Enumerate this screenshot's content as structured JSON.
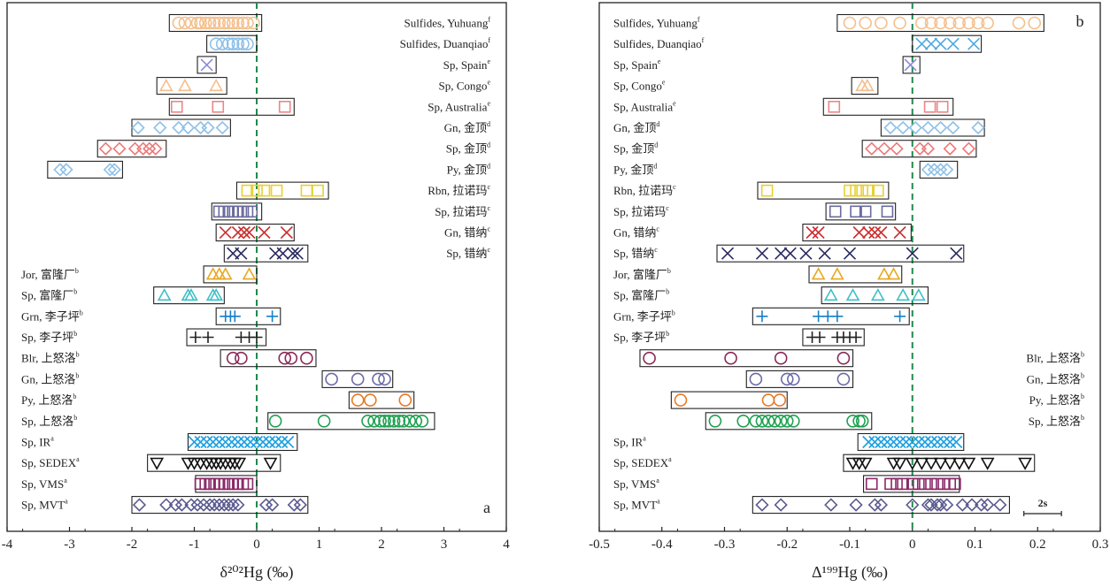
{
  "chart_data": [
    {
      "panel_letter": "a",
      "type": "scatter",
      "xlabel": "δ²⁰²Hg (‰)",
      "xlim": [
        -4,
        4
      ],
      "xticks": [
        "-4",
        "-3",
        "-2",
        "-1",
        "0",
        "1",
        "2",
        "3",
        "4"
      ],
      "reference_line_x": 0,
      "rows": [
        {
          "label": "Sulfides, Yuhuang",
          "sup": "f",
          "side": "right",
          "marker": "circle",
          "color": "#f4bf8c",
          "range": [
            -1.4,
            0.08
          ],
          "values": [
            -1.25,
            -1.15,
            -1.05,
            -0.95,
            -0.9,
            -0.82,
            -0.75,
            -0.68,
            -0.6,
            -0.52,
            -0.45,
            -0.38,
            -0.3,
            -0.22,
            -0.15,
            -0.05
          ]
        },
        {
          "label": "Sulfides, Duanqiao",
          "sup": "f",
          "side": "right",
          "marker": "circle",
          "color": "#8ec0e8",
          "range": [
            -0.8,
            0.0
          ],
          "values": [
            -0.65,
            -0.55,
            -0.45,
            -0.38,
            -0.3,
            -0.22,
            -0.15
          ]
        },
        {
          "label": "Sp, Spain",
          "sup": "e",
          "side": "right",
          "marker": "x",
          "color": "#8a8ad8",
          "range": [
            -0.95,
            -0.65
          ],
          "values": [
            -0.8
          ]
        },
        {
          "label": "Sp, Congo",
          "sup": "e",
          "side": "right",
          "marker": "triangle",
          "color": "#f4bf8c",
          "range": [
            -1.6,
            -0.48
          ],
          "values": [
            -1.45,
            -1.15,
            -0.65
          ]
        },
        {
          "label": "Sp, Australia",
          "sup": "e",
          "side": "right",
          "marker": "square",
          "color": "#e88888",
          "range": [
            -1.4,
            0.6
          ],
          "values": [
            -1.28,
            -0.62,
            0.45
          ]
        },
        {
          "label": "Gn, 金顶",
          "sup": "d",
          "side": "right",
          "marker": "diamond",
          "color": "#8ec0e8",
          "range": [
            -2.0,
            -0.42
          ],
          "values": [
            -1.9,
            -1.55,
            -1.25,
            -1.1,
            -0.9,
            -0.78,
            -0.55
          ]
        },
        {
          "label": "Sp, 金顶",
          "sup": "d",
          "side": "right",
          "marker": "diamond",
          "color": "#ec7878",
          "range": [
            -2.55,
            -1.45
          ],
          "values": [
            -2.42,
            -2.2,
            -1.95,
            -1.82,
            -1.72,
            -1.62
          ]
        },
        {
          "label": "Py, 金顶",
          "sup": "d",
          "side": "right",
          "marker": "diamond",
          "color": "#8ec0e8",
          "range": [
            -3.35,
            -2.15
          ],
          "values": [
            -3.15,
            -3.05,
            -2.35,
            -2.28
          ]
        },
        {
          "label": "Rbn, 拉诺玛",
          "sup": "c",
          "side": "right",
          "marker": "square",
          "color": "#e8d030",
          "range": [
            -0.32,
            1.15
          ],
          "values": [
            -0.15,
            0.0,
            0.12,
            0.32,
            0.8,
            0.98
          ]
        },
        {
          "label": "Sp, 拉诺玛",
          "sup": "c",
          "side": "right",
          "marker": "square",
          "color": "#6a6a9e",
          "range": [
            -0.72,
            0.08
          ],
          "values": [
            -0.6,
            -0.52,
            -0.45,
            -0.38,
            -0.3,
            -0.22,
            -0.15,
            -0.08
          ]
        },
        {
          "label": "Gn, 错纳",
          "sup": "c",
          "side": "right",
          "marker": "x",
          "color": "#cc3030",
          "range": [
            -0.65,
            0.6
          ],
          "values": [
            -0.5,
            -0.3,
            -0.2,
            -0.12,
            0.12,
            0.48
          ]
        },
        {
          "label": "Sp, 错纳",
          "sup": "c",
          "side": "right",
          "marker": "x",
          "color": "#2a2a5e",
          "range": [
            -0.52,
            0.82
          ],
          "values": [
            -0.38,
            -0.25,
            0.3,
            0.42,
            0.58,
            0.65
          ]
        },
        {
          "label": "Jor, 富隆厂",
          "sup": "b",
          "side": "left",
          "marker": "triangle",
          "color": "#e8a820",
          "range": [
            -0.85,
            0.0
          ],
          "values": [
            -0.7,
            -0.6,
            -0.5,
            -0.12
          ]
        },
        {
          "label": "Sp, 富隆厂",
          "sup": "b",
          "side": "left",
          "marker": "triangle",
          "color": "#40c0c8",
          "range": [
            -1.65,
            -0.52
          ],
          "values": [
            -1.48,
            -1.1,
            -1.05,
            -0.7,
            -0.65
          ]
        },
        {
          "label": "Grn, 李子坪",
          "sup": "b",
          "side": "left",
          "marker": "plus",
          "color": "#1880c8",
          "range": [
            -0.65,
            0.38
          ],
          "values": [
            -0.5,
            -0.42,
            -0.35,
            0.25
          ]
        },
        {
          "label": "Sp, 李子坪",
          "sup": "b",
          "side": "left",
          "marker": "plus",
          "color": "#222222",
          "range": [
            -1.12,
            0.15
          ],
          "values": [
            -0.98,
            -0.78,
            -0.25,
            -0.12,
            0.0
          ]
        },
        {
          "label": "Blr, 上怒洛",
          "sup": "b",
          "side": "left",
          "marker": "circle",
          "color": "#8a2858",
          "range": [
            -0.58,
            0.95
          ],
          "values": [
            -0.38,
            -0.25,
            0.45,
            0.55,
            0.8
          ]
        },
        {
          "label": "Gn, 上怒洛",
          "sup": "b",
          "side": "left",
          "marker": "circle",
          "color": "#6a6aa8",
          "range": [
            1.05,
            2.18
          ],
          "values": [
            1.2,
            1.62,
            1.95,
            2.05
          ]
        },
        {
          "label": "Py, 上怒洛",
          "sup": "b",
          "side": "left",
          "marker": "circle",
          "color": "#e87820",
          "range": [
            1.48,
            2.52
          ],
          "values": [
            1.62,
            1.82,
            2.38
          ]
        },
        {
          "label": "Sp, 上怒洛",
          "sup": "b",
          "side": "left",
          "marker": "circle",
          "color": "#20a050",
          "range": [
            0.18,
            2.85
          ],
          "values": [
            0.3,
            1.08,
            1.78,
            1.88,
            1.98,
            2.05,
            2.12,
            2.2,
            2.28,
            2.35,
            2.45,
            2.55,
            2.65
          ]
        },
        {
          "label": "Sp, IR",
          "sup": "a",
          "side": "left",
          "marker": "x",
          "color": "#1ea0e0",
          "range": [
            -1.1,
            0.65
          ],
          "values": [
            -1.0,
            -0.9,
            -0.8,
            -0.7,
            -0.6,
            -0.5,
            -0.4,
            -0.3,
            -0.2,
            -0.1,
            0.0,
            0.1,
            0.2,
            0.3,
            0.4,
            0.5
          ]
        },
        {
          "label": "Sp, SEDEX",
          "sup": "a",
          "side": "left",
          "marker": "triangle-down",
          "color": "#111111",
          "range": [
            -1.75,
            0.38
          ],
          "values": [
            -1.6,
            -1.1,
            -1.0,
            -0.9,
            -0.8,
            -0.72,
            -0.65,
            -0.58,
            -0.5,
            -0.42,
            -0.35,
            -0.28,
            0.22
          ]
        },
        {
          "label": "Sp, VMS",
          "sup": "a",
          "side": "left",
          "marker": "square",
          "color": "#8a2868",
          "range": [
            -0.98,
            0.0
          ],
          "values": [
            -0.9,
            -0.82,
            -0.75,
            -0.68,
            -0.6,
            -0.52,
            -0.45,
            -0.38,
            -0.3,
            -0.22,
            -0.15
          ]
        },
        {
          "label": "Sp, MVT",
          "sup": "a",
          "side": "left",
          "marker": "diamond",
          "color": "#5a5a90",
          "range": [
            -2.0,
            0.82
          ],
          "values": [
            -1.88,
            -1.45,
            -1.3,
            -1.2,
            -1.05,
            -0.95,
            -0.85,
            -0.75,
            -0.68,
            -0.6,
            -0.52,
            -0.45,
            -0.38,
            -0.3,
            0.15,
            0.25,
            0.6,
            0.7
          ]
        }
      ]
    },
    {
      "panel_letter": "b",
      "type": "scatter",
      "xlabel": "Δ¹⁹⁹Hg (‰)",
      "xlim": [
        -0.5,
        0.3
      ],
      "xticks": [
        "-0.5",
        "-0.4",
        "-0.3",
        "-0.2",
        "-0.1",
        "0",
        "0.1",
        "0.2",
        "0.3"
      ],
      "reference_line_x": 0,
      "scale_bar_label": "2s",
      "scale_bar_value": 0.06,
      "rows": [
        {
          "label": "Sulfides, Yuhuang",
          "sup": "f",
          "side": "left",
          "marker": "circle",
          "color": "#f4bf8c",
          "range": [
            -0.12,
            0.21
          ],
          "values": [
            -0.1,
            -0.075,
            -0.05,
            -0.02,
            0.015,
            0.03,
            0.045,
            0.06,
            0.075,
            0.09,
            0.105,
            0.12,
            0.17,
            0.195
          ]
        },
        {
          "label": "Sulfides, Duanqiao",
          "sup": "f",
          "side": "left",
          "marker": "x",
          "color": "#50a8e0",
          "range": [
            0.0,
            0.11
          ],
          "values": [
            0.015,
            0.03,
            0.045,
            0.065,
            0.098
          ]
        },
        {
          "label": "Sp, Spain",
          "sup": "e",
          "side": "left",
          "marker": "x",
          "color": "#8a8ad8",
          "range": [
            -0.015,
            0.012
          ],
          "values": [
            -0.003
          ]
        },
        {
          "label": "Sp, Congo",
          "sup": "e",
          "side": "left",
          "marker": "triangle",
          "color": "#f4bf8c",
          "range": [
            -0.097,
            -0.055
          ],
          "values": [
            -0.08,
            -0.072
          ]
        },
        {
          "label": "Sp, Australia",
          "sup": "e",
          "side": "left",
          "marker": "square",
          "color": "#e88888",
          "range": [
            -0.142,
            0.065
          ],
          "values": [
            -0.125,
            0.028,
            0.048
          ]
        },
        {
          "label": "Gn, 金顶",
          "sup": "d",
          "side": "left",
          "marker": "diamond",
          "color": "#8ec0e8",
          "range": [
            -0.05,
            0.115
          ],
          "values": [
            -0.035,
            -0.015,
            0.005,
            0.025,
            0.045,
            0.065,
            0.105
          ]
        },
        {
          "label": "Sp, 金顶",
          "sup": "d",
          "side": "left",
          "marker": "diamond",
          "color": "#ec7878",
          "range": [
            -0.08,
            0.102
          ],
          "values": [
            -0.065,
            -0.045,
            -0.025,
            0.012,
            0.025,
            0.06,
            0.09
          ]
        },
        {
          "label": "Py, 金顶",
          "sup": "d",
          "side": "left",
          "marker": "diamond",
          "color": "#8ec0e8",
          "range": [
            0.012,
            0.072
          ],
          "values": [
            0.025,
            0.035,
            0.045,
            0.055
          ]
        },
        {
          "label": "Rbn, 拉诺玛",
          "sup": "c",
          "side": "left",
          "marker": "square",
          "color": "#e8d030",
          "range": [
            -0.247,
            -0.038
          ],
          "values": [
            -0.232,
            -0.1,
            -0.09,
            -0.08,
            -0.07,
            -0.055
          ]
        },
        {
          "label": "Sp, 拉诺玛",
          "sup": "c",
          "side": "left",
          "marker": "square",
          "color": "#6a6a9e",
          "range": [
            -0.138,
            -0.027
          ],
          "values": [
            -0.123,
            -0.09,
            -0.075,
            -0.04
          ]
        },
        {
          "label": "Gn, 错纳",
          "sup": "c",
          "side": "left",
          "marker": "x",
          "color": "#cc3030",
          "range": [
            -0.175,
            -0.002
          ],
          "values": [
            -0.16,
            -0.15,
            -0.085,
            -0.07,
            -0.06,
            -0.05,
            -0.02
          ]
        },
        {
          "label": "Sp, 错纳",
          "sup": "c",
          "side": "left",
          "marker": "x",
          "color": "#2a2a5e",
          "range": [
            -0.312,
            0.082
          ],
          "values": [
            -0.295,
            -0.24,
            -0.21,
            -0.195,
            -0.17,
            -0.14,
            -0.1,
            0.0,
            0.07
          ]
        },
        {
          "label": "Jor, 富隆厂",
          "sup": "b",
          "side": "left",
          "marker": "triangle",
          "color": "#e8a820",
          "range": [
            -0.165,
            -0.017
          ],
          "values": [
            -0.15,
            -0.12,
            -0.045,
            -0.03
          ]
        },
        {
          "label": "Sp, 富隆厂",
          "sup": "b",
          "side": "left",
          "marker": "triangle",
          "color": "#40c0c8",
          "range": [
            -0.145,
            0.025
          ],
          "values": [
            -0.13,
            -0.095,
            -0.055,
            -0.015,
            0.01
          ]
        },
        {
          "label": "Grn, 李子坪",
          "sup": "b",
          "side": "left",
          "marker": "plus",
          "color": "#1880c8",
          "range": [
            -0.255,
            -0.005
          ],
          "values": [
            -0.24,
            -0.15,
            -0.135,
            -0.12,
            -0.02
          ]
        },
        {
          "label": "Sp, 李子坪",
          "sup": "b",
          "side": "left",
          "marker": "plus",
          "color": "#222222",
          "range": [
            -0.175,
            -0.077
          ],
          "values": [
            -0.16,
            -0.148,
            -0.12,
            -0.11,
            -0.1,
            -0.09
          ]
        },
        {
          "label": "Blr, 上怒洛",
          "sup": "b",
          "side": "right",
          "marker": "circle",
          "color": "#8a2858",
          "range": [
            -0.435,
            -0.095
          ],
          "values": [
            -0.42,
            -0.29,
            -0.21,
            -0.11
          ]
        },
        {
          "label": "Gn, 上怒洛",
          "sup": "b",
          "side": "right",
          "marker": "circle",
          "color": "#6a6aa8",
          "range": [
            -0.265,
            -0.095
          ],
          "values": [
            -0.25,
            -0.2,
            -0.19,
            -0.11
          ]
        },
        {
          "label": "Py, 上怒洛",
          "sup": "b",
          "side": "right",
          "marker": "circle",
          "color": "#e87820",
          "range": [
            -0.385,
            -0.2
          ],
          "values": [
            -0.37,
            -0.23,
            -0.212
          ]
        },
        {
          "label": "Sp, 上怒洛",
          "sup": "b",
          "side": "right",
          "marker": "circle",
          "color": "#20a050",
          "range": [
            -0.33,
            -0.065
          ],
          "values": [
            -0.315,
            -0.27,
            -0.25,
            -0.24,
            -0.23,
            -0.22,
            -0.21,
            -0.2,
            -0.19,
            -0.095,
            -0.085,
            -0.08
          ]
        },
        {
          "label": "Sp, IR",
          "sup": "a",
          "side": "left",
          "marker": "x",
          "color": "#1ea0e0",
          "range": [
            -0.087,
            0.082
          ],
          "values": [
            -0.07,
            -0.06,
            -0.05,
            -0.04,
            -0.03,
            -0.02,
            -0.01,
            0.0,
            0.01,
            0.02,
            0.03,
            0.04,
            0.05,
            0.06,
            0.07
          ]
        },
        {
          "label": "Sp, SEDEX",
          "sup": "a",
          "side": "left",
          "marker": "triangle-down",
          "color": "#111111",
          "range": [
            -0.11,
            0.195
          ],
          "values": [
            -0.095,
            -0.085,
            -0.075,
            -0.03,
            -0.02,
            0.0,
            0.015,
            0.03,
            0.045,
            0.06,
            0.075,
            0.09,
            0.12,
            0.18
          ]
        },
        {
          "label": "Sp, VMS",
          "sup": "a",
          "side": "left",
          "marker": "square",
          "color": "#8a2868",
          "range": [
            -0.078,
            0.075
          ],
          "values": [
            -0.065,
            -0.035,
            -0.025,
            -0.015,
            0.0,
            0.01,
            0.02,
            0.03,
            0.04,
            0.05,
            0.06,
            0.068
          ]
        },
        {
          "label": "Sp, MVT",
          "sup": "a",
          "side": "left",
          "marker": "diamond",
          "color": "#5a5a90",
          "range": [
            -0.255,
            0.155
          ],
          "values": [
            -0.24,
            -0.21,
            -0.13,
            -0.09,
            -0.06,
            -0.05,
            0.0,
            0.025,
            0.03,
            0.04,
            0.045,
            0.055,
            0.08,
            0.095,
            0.11,
            0.12,
            0.14
          ]
        }
      ]
    }
  ]
}
